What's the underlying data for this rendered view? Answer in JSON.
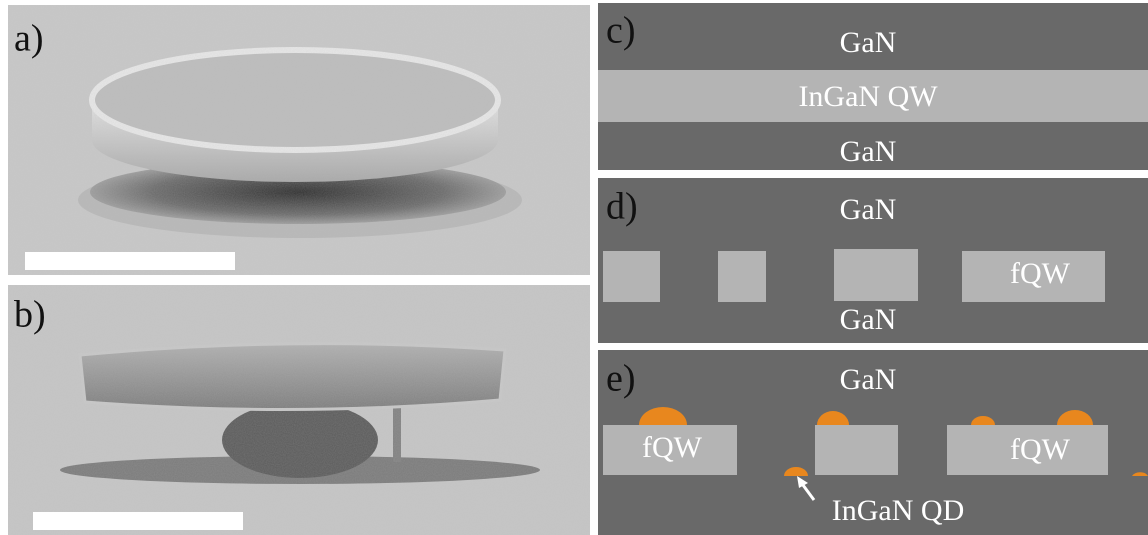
{
  "panels": [
    {
      "label": "a)"
    },
    {
      "label": "b)"
    },
    {
      "label": "c)",
      "texts": [
        "GaN",
        "InGaN QW",
        "GaN"
      ]
    },
    {
      "label": "d)",
      "texts": [
        "GaN",
        "fQW",
        "GaN"
      ]
    },
    {
      "label": "e)",
      "texts": [
        "GaN",
        "fQW",
        "fQW",
        "InGaN QD"
      ]
    }
  ]
}
